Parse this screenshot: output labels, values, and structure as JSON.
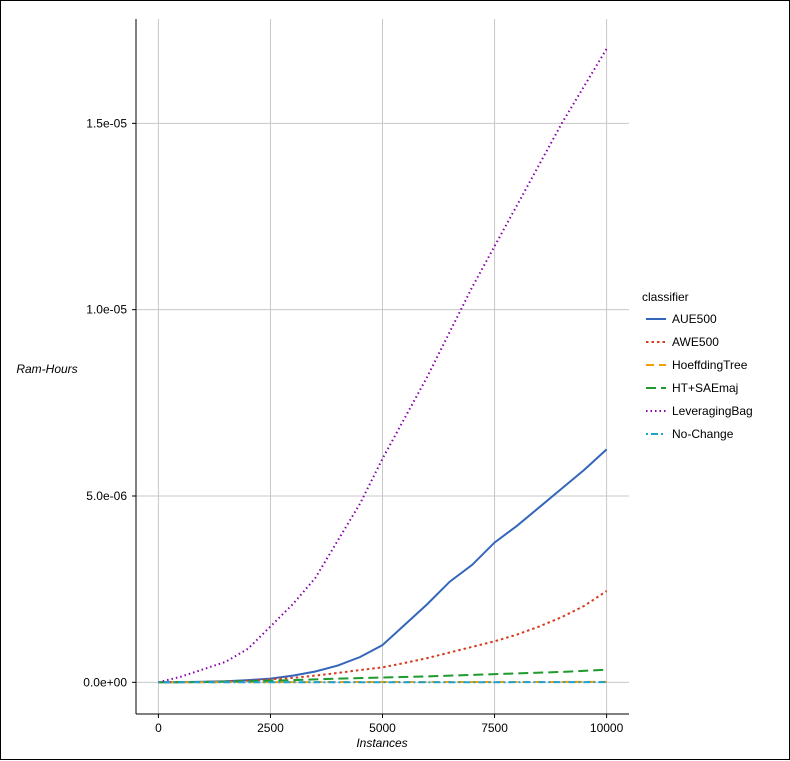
{
  "chart_data": {
    "type": "line",
    "xlabel": "Instances",
    "ylabel": "Ram-Hours",
    "xlim": [
      -500,
      10500
    ],
    "ylim": [
      -8.5e-07,
      1.78e-05
    ],
    "x_ticks": [
      0,
      2500,
      5000,
      7500,
      10000
    ],
    "x_tick_labels": [
      "0",
      "2500",
      "5000",
      "7500",
      "10000"
    ],
    "y_ticks": [
      0,
      5e-06,
      1e-05,
      1.5e-05
    ],
    "y_tick_labels": [
      "0.0e+00",
      "5.0e-06",
      "1.0e-05",
      "1.5e-05"
    ],
    "grid": true,
    "legend": {
      "title": "classifier",
      "placement": "right"
    },
    "series": [
      {
        "name": "AUE500",
        "color": "#3366bb",
        "dash": "solid",
        "x": [
          0,
          500,
          1000,
          1500,
          2000,
          2500,
          3000,
          3500,
          4000,
          4500,
          5000,
          5500,
          6000,
          6500,
          7000,
          7500,
          8000,
          8500,
          9000,
          9500,
          10000
        ],
        "y": [
          0,
          5e-09,
          1.5e-08,
          3e-08,
          6e-08,
          1e-07,
          1.8e-07,
          2.9e-07,
          4.5e-07,
          6.8e-07,
          1e-06,
          1.55e-06,
          2.1e-06,
          2.7e-06,
          3.15e-06,
          3.75e-06,
          4.2e-06,
          4.7e-06,
          5.2e-06,
          5.7e-06,
          6.25e-06
        ]
      },
      {
        "name": "AWE500",
        "color": "#d63a1e",
        "dash": "dotted",
        "x": [
          0,
          1000,
          2000,
          2500,
          3000,
          3500,
          4000,
          4500,
          5000,
          5500,
          6000,
          6500,
          7000,
          7500,
          8000,
          8500,
          9000,
          9500,
          10000
        ],
        "y": [
          0,
          1e-08,
          4e-08,
          8e-08,
          1.2e-07,
          1.8e-07,
          2.5e-07,
          3.3e-07,
          4e-07,
          5.2e-07,
          6.5e-07,
          8e-07,
          9.5e-07,
          1.1e-06,
          1.28e-06,
          1.5e-06,
          1.75e-06,
          2.05e-06,
          2.45e-06
        ]
      },
      {
        "name": "HoeffdingTree",
        "color": "#f0a000",
        "dash": "dashed",
        "x": [
          0,
          2500,
          5000,
          7500,
          10000
        ],
        "y": [
          0,
          5e-09,
          8e-09,
          1e-08,
          1.2e-08
        ]
      },
      {
        "name": "HT+SAEmaj",
        "color": "#1e9a2e",
        "dash": "longdash",
        "x": [
          0,
          1000,
          2000,
          3000,
          4000,
          5000,
          6000,
          7000,
          8000,
          9000,
          10000
        ],
        "y": [
          0,
          1e-08,
          3e-08,
          6e-08,
          1e-07,
          1.3e-07,
          1.6e-07,
          2e-07,
          2.4e-07,
          2.8e-07,
          3.4e-07
        ]
      },
      {
        "name": "LeveragingBag",
        "color": "#8800aa",
        "dash": "dotted-fine",
        "x": [
          0,
          500,
          1000,
          1500,
          2000,
          2500,
          3000,
          3500,
          4000,
          4500,
          5000,
          5500,
          6000,
          6500,
          7000,
          7500,
          8000,
          8500,
          9000,
          9500,
          10000
        ],
        "y": [
          0,
          1.5e-07,
          3.5e-07,
          5.5e-07,
          9e-07,
          1.5e-06,
          2.1e-06,
          2.8e-06,
          3.8e-06,
          4.8e-06,
          6e-06,
          7.1e-06,
          8.2e-06,
          9.4e-06,
          1.06e-05,
          1.17e-05,
          1.28e-05,
          1.39e-05,
          1.5e-05,
          1.6e-05,
          1.7e-05
        ]
      },
      {
        "name": "No-Change",
        "color": "#1ea0d0",
        "dash": "dotdash",
        "x": [
          0,
          2500,
          5000,
          7500,
          10000
        ],
        "y": [
          0,
          2e-09,
          3e-09,
          4e-09,
          5e-09
        ]
      }
    ]
  }
}
